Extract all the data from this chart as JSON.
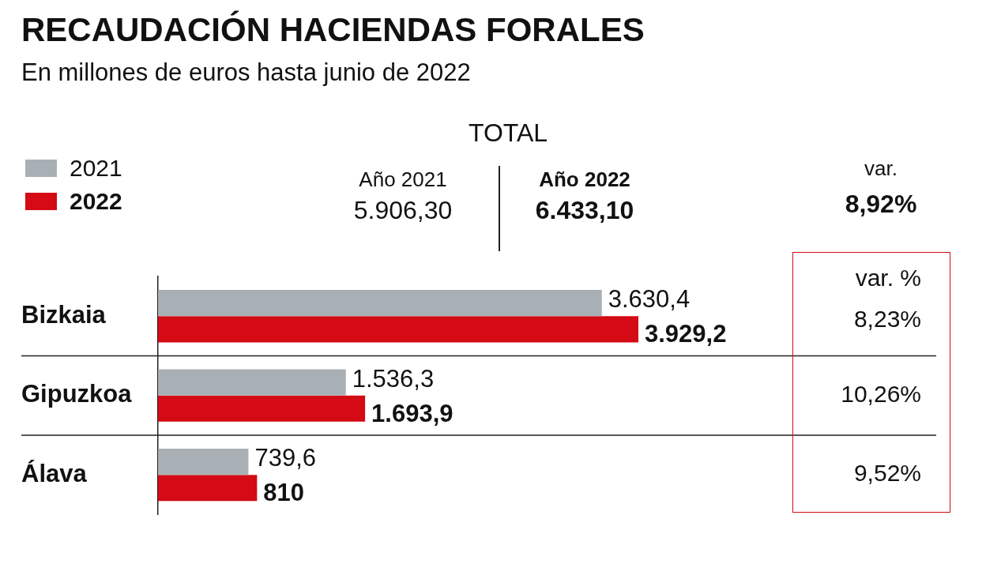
{
  "chart_data": {
    "type": "bar",
    "orientation": "horizontal",
    "title": "RECAUDACIÓN HACIENDAS FORALES",
    "subtitle": "En millones de euros hasta junio de 2022",
    "categories": [
      "Bizkaia",
      "Gipuzkoa",
      "Álava"
    ],
    "series": [
      {
        "name": "2021",
        "color": "#a9b0b5",
        "values": [
          3630.4,
          1536.3,
          739.6
        ],
        "value_labels": [
          "3.630,4",
          "1.536,3",
          "739,6"
        ]
      },
      {
        "name": "2022",
        "color": "#d40a14",
        "values": [
          3929.2,
          1693.9,
          810
        ],
        "value_labels": [
          "3.929,2",
          "1.693,9",
          "810"
        ]
      }
    ],
    "annotations": [
      "TOTAL",
      "Año 2021",
      "5.906,30",
      "Año 2022",
      "6.433,10",
      "var.",
      "8,92%",
      "var. %",
      "8,23%",
      "10,26%",
      "9,52%"
    ],
    "legend": "top left",
    "grid": "y",
    "tick_labels": "y"
  }
}
